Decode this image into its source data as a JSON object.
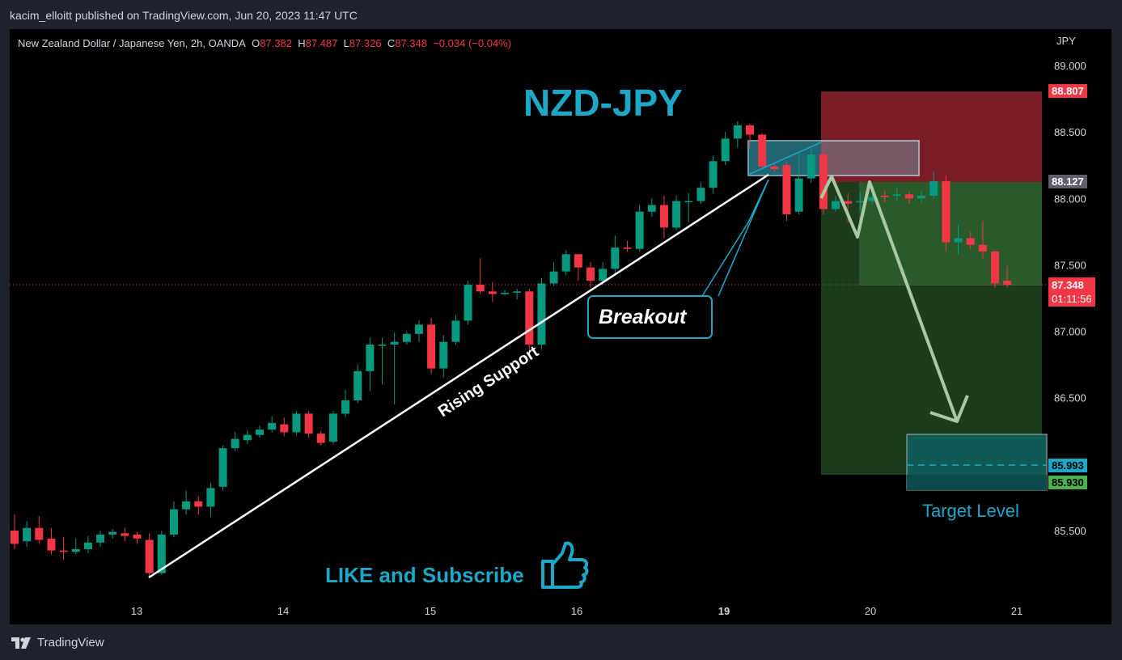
{
  "header": {
    "publish_line": "kacim_elloitt published on TradingView.com, Jun 20, 2023 11:47 UTC"
  },
  "legend": {
    "symbol": "New Zealand Dollar / Japanese Yen, 2h, OANDA",
    "o_label": "O",
    "o": "87.382",
    "h_label": "H",
    "h": "87.487",
    "l_label": "L",
    "l": "87.326",
    "c_label": "C",
    "c": "87.348",
    "change": "−0.034 (−0.04%)"
  },
  "annotations": {
    "title": "NZD-JPY",
    "rising_support": "Rising Support",
    "breakout": "Breakout",
    "target_level": "Target Level",
    "like_subscribe": "LIKE and Subscribe"
  },
  "price_tags": {
    "stop": "88.807",
    "entry": "88.127",
    "current": "87.348",
    "countdown": "01:11:56",
    "target1": "85.993",
    "target2": "85.930"
  },
  "footer": {
    "brand": "TradingView"
  },
  "colors": {
    "bull": "#089981",
    "bear": "#f23645",
    "accent": "#1ba8c9",
    "red_zone": "#7a1d26",
    "green_zone": "#1f4a1f"
  },
  "chart_data": {
    "type": "candlestick",
    "currency": "JPY",
    "yticks": [
      "89.000",
      "88.500",
      "88.000",
      "87.500",
      "87.000",
      "86.500",
      "86.000",
      "85.500"
    ],
    "xticks": [
      "13",
      "14",
      "15",
      "16",
      "19",
      "20",
      "21"
    ],
    "ylim": [
      85.2,
      89.25
    ],
    "candles": [
      [
        85.5,
        85.4,
        85.62,
        85.36
      ],
      [
        85.42,
        85.52,
        85.57,
        85.38
      ],
      [
        85.52,
        85.43,
        85.61,
        85.4
      ],
      [
        85.44,
        85.35,
        85.52,
        85.32
      ],
      [
        85.35,
        85.34,
        85.45,
        85.28
      ],
      [
        85.34,
        85.36,
        85.44,
        85.32
      ],
      [
        85.36,
        85.41,
        85.46,
        85.33
      ],
      [
        85.41,
        85.47,
        85.5,
        85.38
      ],
      [
        85.47,
        85.49,
        85.51,
        85.44
      ],
      [
        85.48,
        85.46,
        85.52,
        85.42
      ],
      [
        85.47,
        85.44,
        85.49,
        85.4
      ],
      [
        85.43,
        85.18,
        85.48,
        85.15
      ],
      [
        85.18,
        85.47,
        85.5,
        85.17
      ],
      [
        85.47,
        85.66,
        85.72,
        85.45
      ],
      [
        85.66,
        85.72,
        85.8,
        85.62
      ],
      [
        85.72,
        85.68,
        85.76,
        85.62
      ],
      [
        85.68,
        85.82,
        85.86,
        85.6
      ],
      [
        85.83,
        86.12,
        86.14,
        85.8
      ],
      [
        86.12,
        86.19,
        86.24,
        86.1
      ],
      [
        86.18,
        86.22,
        86.26,
        86.15
      ],
      [
        86.22,
        86.26,
        86.29,
        86.2
      ],
      [
        86.26,
        86.31,
        86.36,
        86.24
      ],
      [
        86.3,
        86.24,
        86.35,
        86.21
      ],
      [
        86.24,
        86.38,
        86.4,
        86.22
      ],
      [
        86.38,
        86.23,
        86.4,
        86.2
      ],
      [
        86.23,
        86.16,
        86.25,
        86.14
      ],
      [
        86.17,
        86.38,
        86.4,
        86.15
      ],
      [
        86.38,
        86.48,
        86.56,
        86.35
      ],
      [
        86.48,
        86.7,
        86.75,
        86.46
      ],
      [
        86.7,
        86.9,
        86.95,
        86.55
      ],
      [
        86.9,
        86.9,
        86.95,
        86.6
      ],
      [
        86.9,
        86.92,
        86.99,
        86.45
      ],
      [
        86.92,
        86.98,
        87.0,
        86.9
      ],
      [
        86.98,
        87.05,
        87.08,
        86.92
      ],
      [
        87.05,
        86.72,
        87.1,
        86.68
      ],
      [
        86.72,
        86.92,
        86.97,
        86.65
      ],
      [
        86.92,
        87.08,
        87.12,
        86.9
      ],
      [
        87.08,
        87.35,
        87.38,
        87.05
      ],
      [
        87.35,
        87.3,
        87.55,
        87.28
      ],
      [
        87.3,
        87.28,
        87.37,
        87.22
      ],
      [
        87.28,
        87.29,
        87.31,
        87.27
      ],
      [
        87.29,
        87.3,
        87.32,
        87.24
      ],
      [
        87.3,
        86.9,
        87.32,
        86.84
      ],
      [
        86.9,
        87.36,
        87.4,
        86.86
      ],
      [
        87.36,
        87.45,
        87.52,
        87.34
      ],
      [
        87.45,
        87.58,
        87.61,
        87.42
      ],
      [
        87.58,
        87.48,
        87.58,
        87.38
      ],
      [
        87.48,
        87.38,
        87.52,
        87.33
      ],
      [
        87.38,
        87.47,
        87.52,
        87.35
      ],
      [
        87.47,
        87.63,
        87.72,
        87.42
      ],
      [
        87.63,
        87.62,
        87.68,
        87.6
      ],
      [
        87.62,
        87.9,
        87.95,
        87.6
      ],
      [
        87.9,
        87.95,
        88.0,
        87.86
      ],
      [
        87.95,
        87.78,
        88.02,
        87.7
      ],
      [
        87.78,
        87.98,
        88.02,
        87.76
      ],
      [
        87.98,
        87.98,
        88.04,
        87.82
      ],
      [
        87.98,
        88.08,
        88.12,
        87.96
      ],
      [
        88.08,
        88.28,
        88.32,
        88.04
      ],
      [
        88.28,
        88.45,
        88.5,
        88.25
      ],
      [
        88.45,
        88.55,
        88.58,
        88.38
      ],
      [
        88.55,
        88.48,
        88.56,
        88.38
      ],
      [
        88.48,
        88.24,
        88.49,
        88.22
      ],
      [
        88.24,
        88.22,
        88.26,
        88.2
      ],
      [
        88.25,
        87.88,
        88.28,
        87.83
      ],
      [
        87.9,
        88.15,
        88.35,
        87.88
      ],
      [
        88.15,
        88.33,
        88.38,
        88.12
      ],
      [
        88.33,
        87.92,
        88.38,
        87.88
      ],
      [
        87.92,
        87.98,
        88.02,
        87.9
      ],
      [
        87.98,
        87.96,
        88.04,
        87.82
      ],
      [
        87.97,
        87.98,
        88.05,
        87.91
      ],
      [
        87.98,
        88.01,
        88.07,
        87.96
      ],
      [
        88.02,
        88.01,
        88.06,
        87.97
      ],
      [
        88.02,
        88.03,
        88.08,
        87.98
      ],
      [
        88.03,
        88.0,
        88.05,
        87.96
      ],
      [
        88.0,
        88.02,
        88.06,
        87.97
      ],
      [
        88.02,
        88.13,
        88.2,
        88.0
      ],
      [
        88.13,
        87.67,
        88.17,
        87.6
      ],
      [
        87.67,
        87.7,
        87.8,
        87.58
      ],
      [
        87.7,
        87.65,
        87.75,
        87.62
      ],
      [
        87.65,
        87.6,
        87.83,
        87.55
      ],
      [
        87.6,
        87.36,
        87.61,
        87.33
      ],
      [
        87.38,
        87.35,
        87.49,
        87.33
      ]
    ]
  }
}
